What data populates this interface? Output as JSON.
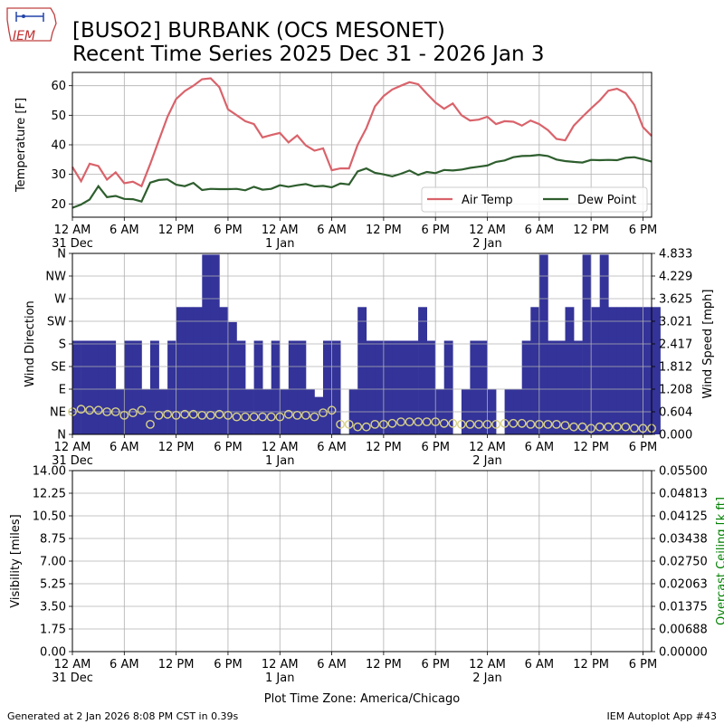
{
  "header": {
    "logo_text": "IEM",
    "title_line1": "[BUSO2] BURBANK (OCS MESONET)",
    "title_line2": "Recent Time Series 2025 Dec 31 - 2026 Jan 3"
  },
  "footer": {
    "generated": "Generated at 2 Jan 2026 8:08 PM CST in 0.39s",
    "app": "IEM Autoplot App #43",
    "timezone": "Plot Time Zone: America/Chicago"
  },
  "colors": {
    "air_temp": "#d9636b",
    "dew_point": "#2e5e2e",
    "wind_speed_bar": "#333399",
    "wind_dir_marker": "#d8d18a",
    "grid": "#b0b0b0",
    "ceiling_label": "#008000"
  },
  "time_axis": {
    "hours_range": [
      0,
      67
    ],
    "tick_hours": [
      0,
      6,
      12,
      18,
      24,
      30,
      36,
      42,
      48,
      54,
      60,
      66
    ],
    "tick_labels": [
      "12 AM",
      "6 AM",
      "12 PM",
      "6 PM",
      "12 AM",
      "6 AM",
      "12 PM",
      "6 PM",
      "12 AM",
      "6 AM",
      "12 PM",
      "6 PM"
    ],
    "date_hours": [
      0,
      24,
      48
    ],
    "date_labels": [
      "31 Dec",
      "1 Jan",
      "2 Jan"
    ]
  },
  "chart_data": [
    {
      "type": "line",
      "ylabel": "Temperature [F]",
      "ylim": [
        15.5,
        64.5
      ],
      "yticks": [
        20,
        30,
        40,
        50,
        60
      ],
      "grid": true,
      "legend": "bottom-right",
      "x": [
        0,
        1,
        2,
        3,
        4,
        5,
        6,
        7,
        8,
        9,
        10,
        11,
        12,
        13,
        14,
        15,
        16,
        17,
        18,
        19,
        20,
        21,
        22,
        23,
        24,
        25,
        26,
        27,
        28,
        29,
        30,
        31,
        32,
        33,
        34,
        35,
        36,
        37,
        38,
        39,
        40,
        41,
        42,
        43,
        44,
        45,
        46,
        47,
        48,
        49,
        50,
        51,
        52,
        53,
        54,
        55,
        56,
        57,
        58,
        59,
        60,
        61,
        62,
        63,
        64,
        65,
        66,
        67
      ],
      "series": [
        {
          "name": "Air Temp",
          "values": [
            32.5,
            27.7,
            33.6,
            32.8,
            28.2,
            30.7,
            27.0,
            27.5,
            26.0,
            33.5,
            41.5,
            49.5,
            55.5,
            58.2,
            60.0,
            62.2,
            62.5,
            59.5,
            52.0,
            50.0,
            48.0,
            47.0,
            42.5,
            43.3,
            44.0,
            40.8,
            43.2,
            39.8,
            38.0,
            38.8,
            31.4,
            32.0,
            32.0,
            40.0,
            45.6,
            53.0,
            56.5,
            58.7,
            60.0,
            61.2,
            60.5,
            57.3,
            54.3,
            52.2,
            54.0,
            50.0,
            48.2,
            48.5,
            49.5,
            47.0,
            48.0,
            47.8,
            46.5,
            48.2,
            47.0,
            45.0,
            42.0,
            41.5,
            46.5,
            49.5,
            52.3,
            55.0,
            58.3,
            59.0,
            57.5,
            53.5,
            46.0,
            43.0
          ]
        },
        {
          "name": "Dew Point",
          "values": [
            18.7,
            19.8,
            21.5,
            26.0,
            22.3,
            22.7,
            21.7,
            21.6,
            20.8,
            27.2,
            28.1,
            28.3,
            26.5,
            26.0,
            27.1,
            24.7,
            25.1,
            25.0,
            25.0,
            25.1,
            24.6,
            25.8,
            24.8,
            25.1,
            26.3,
            25.8,
            26.3,
            26.7,
            25.9,
            26.1,
            25.6,
            26.9,
            26.6,
            31.0,
            32.0,
            30.5,
            30.0,
            29.3,
            30.2,
            31.3,
            29.8,
            30.8,
            30.4,
            31.5,
            31.3,
            31.6,
            32.2,
            32.6,
            33.0,
            34.2,
            34.7,
            35.8,
            36.2,
            36.3,
            36.6,
            36.2,
            35.0,
            34.5,
            34.2,
            34.0,
            34.9,
            34.8,
            34.9,
            34.8,
            35.6,
            35.8,
            35.1,
            34.3
          ]
        }
      ]
    },
    {
      "type": "bar",
      "ylabel": "Wind Direction",
      "y2label": "Wind Speed [mph]",
      "ylim": [
        0,
        360
      ],
      "yticks": [
        0,
        45,
        90,
        135,
        180,
        225,
        270,
        315,
        360
      ],
      "ytick_labels": [
        "N",
        "NE",
        "E",
        "SE",
        "S",
        "SW",
        "W",
        "NW",
        "N"
      ],
      "y2lim": [
        0,
        4.833
      ],
      "y2ticks": [
        0,
        0.604,
        1.208,
        1.812,
        2.417,
        3.021,
        3.625,
        4.229,
        4.833
      ],
      "y2tick_labels": [
        "0.000",
        "0.604",
        "1.208",
        "1.812",
        "2.417",
        "3.021",
        "3.625",
        "4.229",
        "4.833"
      ],
      "grid": true,
      "x": [
        0,
        1,
        2,
        3,
        4,
        5,
        6,
        7,
        8,
        9,
        10,
        11,
        12,
        13,
        14,
        15,
        16,
        17,
        18,
        19,
        20,
        21,
        22,
        23,
        24,
        25,
        26,
        27,
        28,
        29,
        30,
        31,
        32,
        33,
        34,
        35,
        36,
        37,
        38,
        39,
        40,
        41,
        42,
        43,
        44,
        45,
        46,
        47,
        48,
        49,
        50,
        51,
        52,
        53,
        54,
        55,
        56,
        57,
        58,
        59,
        60,
        61,
        62,
        63,
        64,
        65,
        66,
        67
      ],
      "series": [
        {
          "name": "Wind Speed",
          "values": [
            2.5,
            2.5,
            2.5,
            2.5,
            2.5,
            1.2,
            2.5,
            2.5,
            1.2,
            2.5,
            1.2,
            2.5,
            3.4,
            3.4,
            3.4,
            4.8,
            4.8,
            3.4,
            3.0,
            2.5,
            1.2,
            2.5,
            1.2,
            2.5,
            1.2,
            2.5,
            2.5,
            1.2,
            1.0,
            2.5,
            2.5,
            0,
            1.2,
            3.4,
            2.5,
            2.5,
            2.5,
            2.5,
            2.5,
            2.5,
            3.4,
            2.5,
            1.2,
            2.5,
            0,
            1.2,
            2.5,
            2.5,
            1.2,
            0,
            1.2,
            1.2,
            2.5,
            3.4,
            4.8,
            2.5,
            2.5,
            3.4,
            2.5,
            4.8,
            3.4,
            4.8,
            3.4,
            3.4,
            3.4,
            3.4,
            3.4,
            3.4
          ]
        },
        {
          "name": "Wind Direction",
          "values": [
            45,
            50,
            48,
            48,
            45,
            45,
            38,
            43,
            48,
            20,
            38,
            40,
            38,
            40,
            40,
            38,
            38,
            40,
            38,
            35,
            35,
            35,
            35,
            35,
            35,
            40,
            38,
            38,
            35,
            43,
            48,
            20,
            20,
            15,
            15,
            20,
            20,
            22,
            25,
            25,
            25,
            25,
            25,
            22,
            22,
            20,
            20,
            20,
            20,
            20,
            22,
            22,
            22,
            20,
            20,
            20,
            20,
            18,
            15,
            15,
            12,
            15,
            15,
            15,
            15,
            12,
            12,
            12
          ]
        }
      ]
    },
    {
      "type": "line",
      "ylabel": "Visibility [miles]",
      "y2label": "Overcast Ceiling [k ft]",
      "ylim": [
        0,
        14
      ],
      "yticks": [
        0,
        1.75,
        3.5,
        5.25,
        7.0,
        8.75,
        10.5,
        12.25,
        14.0
      ],
      "ytick_labels": [
        "0.00",
        "1.75",
        "3.50",
        "5.25",
        "7.00",
        "8.75",
        "10.50",
        "12.25",
        "14.00"
      ],
      "y2lim": [
        0,
        0.055
      ],
      "y2ticks": [
        0,
        0.00688,
        0.01375,
        0.02063,
        0.0275,
        0.03438,
        0.04125,
        0.04813,
        0.055
      ],
      "y2tick_labels": [
        "0.00000",
        "0.00688",
        "0.01375",
        "0.02063",
        "0.02750",
        "0.03438",
        "0.04125",
        "0.04813",
        "0.05500"
      ],
      "grid": true,
      "series": []
    }
  ]
}
